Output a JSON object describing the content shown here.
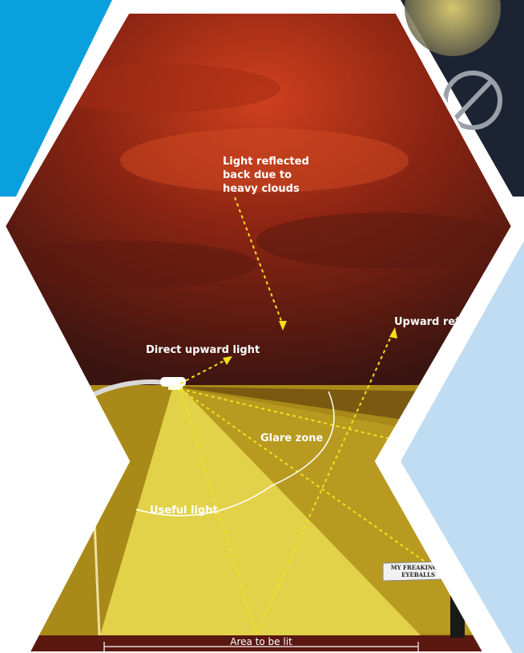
{
  "labels": {
    "reflected_clouds": [
      "Light reflected",
      "back due to",
      "heavy clouds"
    ],
    "direct_upward": "Direct upward light",
    "upward_reflected": "Upward ref",
    "glare_zone": "Glare zone",
    "useful_light": "Useful light",
    "area_to_be_lit": "Area to be lit",
    "speech_bubble": [
      "MY FREAKING",
      "EYEBALLS"
    ]
  },
  "colors": {
    "blue_tile": "#0aa0dd",
    "light_blue_tile": "#bfdcf2",
    "sky_dark": "#3a1410",
    "sky_red": "#b8321a",
    "ground_dark": "#7a5a10",
    "ground_mid": "#a98a18",
    "useful_cone": "#e2d24a",
    "road": "#5a1810",
    "arrow": "#f5e020",
    "text": "#ffffff"
  },
  "icons": [
    "street-lamp-icon",
    "no-light-pollution-icon",
    "person-icon"
  ]
}
